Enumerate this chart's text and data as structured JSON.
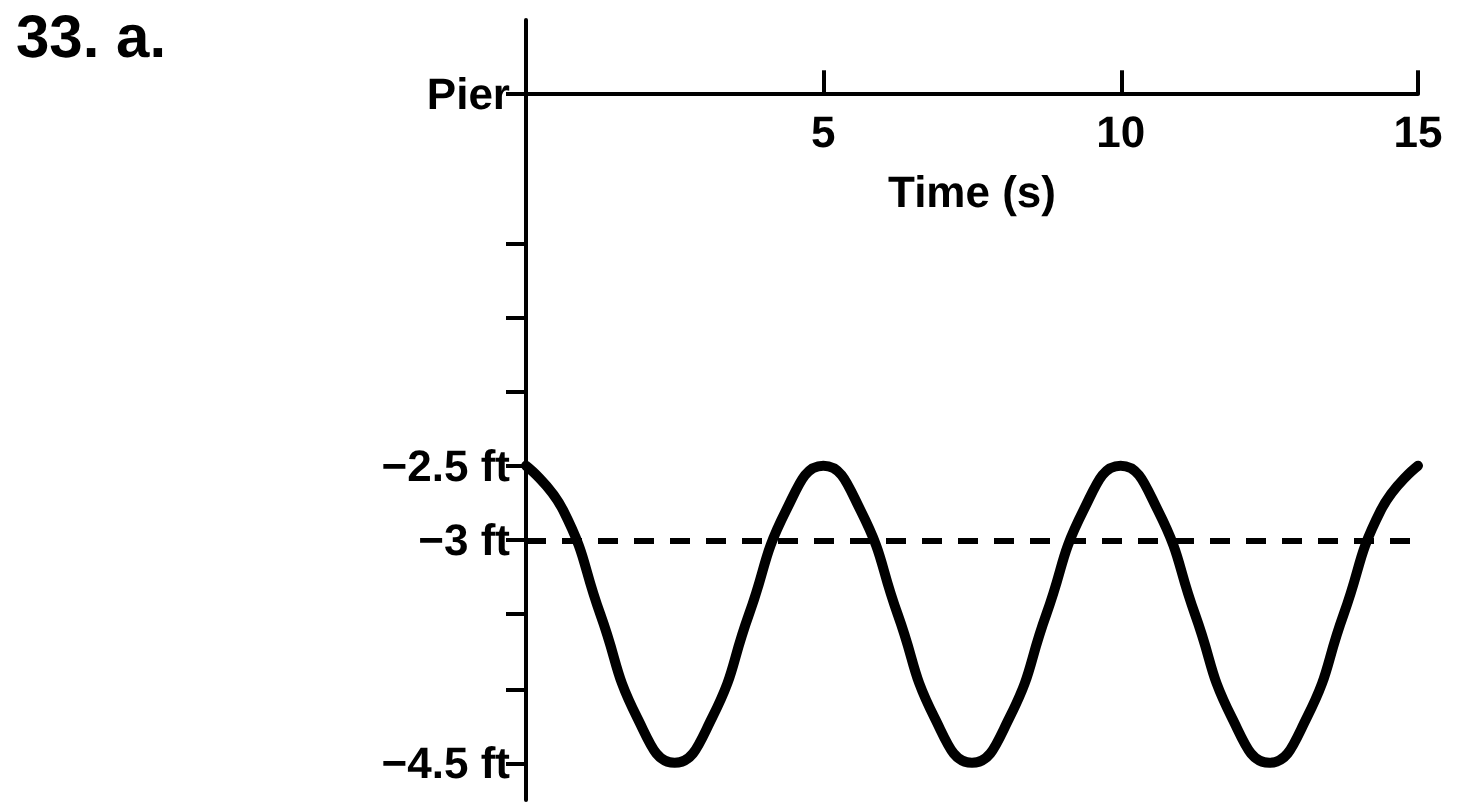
{
  "chart_data": {
    "type": "line",
    "annotations": [
      "33. a."
    ],
    "xlabel": "Time (s)",
    "x": [
      0,
      0.625,
      1.25,
      1.875,
      2.5,
      3.125,
      3.75,
      4.375,
      5,
      5.625,
      6.25,
      6.875,
      7.5,
      8.125,
      8.75,
      9.375,
      10,
      10.625,
      11.25,
      11.875,
      12.5,
      13.125,
      13.75,
      14.375,
      15
    ],
    "series": [
      {
        "color": "#000000",
        "values": [
          -2.5,
          -2.8,
          -3.5,
          -4.2,
          -4.5,
          -4.2,
          -3.5,
          -2.8,
          -2.5,
          -2.8,
          -3.5,
          -4.2,
          -4.5,
          -4.2,
          -3.5,
          -2.8,
          -2.5,
          -2.8,
          -3.5,
          -4.2,
          -4.5,
          -4.2,
          -3.5,
          -2.8,
          -2.5
        ]
      }
    ],
    "xlim": [
      0,
      15
    ],
    "xticks": [
      5,
      10,
      15
    ],
    "ylim": [
      -4.75,
      0.5
    ],
    "yticks": [
      {
        "value": 0,
        "label": "Pier"
      },
      {
        "value": -1,
        "label": null
      },
      {
        "value": -1.5,
        "label": null
      },
      {
        "value": -2,
        "label": null
      },
      {
        "value": -2.5,
        "label": "−2.5 ft"
      },
      {
        "value": -3,
        "label": "−3 ft"
      },
      {
        "value": -3.5,
        "label": null
      },
      {
        "value": -4,
        "label": null
      },
      {
        "value": -4.5,
        "label": "−4.5 ft"
      }
    ],
    "ref_lines": [
      {
        "axis": "y",
        "value": -3,
        "color": "#000000",
        "line_style": "dashed"
      }
    ],
    "grid": false,
    "marker": "none",
    "line_style": "solid"
  }
}
